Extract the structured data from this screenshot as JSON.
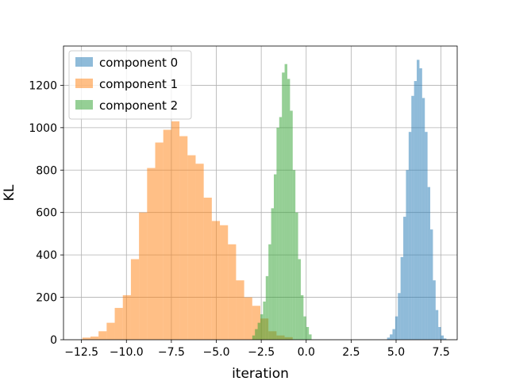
{
  "chart_data": {
    "type": "bar",
    "title": "",
    "xlabel": "iteration",
    "ylabel": "KL",
    "xlim": [
      -13.5,
      8.4
    ],
    "ylim": [
      0,
      1385
    ],
    "grid": true,
    "legend_position": "top-left",
    "xticks": [
      -12.5,
      -10.0,
      -7.5,
      -5.0,
      -2.5,
      0.0,
      2.5,
      5.0,
      7.5
    ],
    "xtick_labels": [
      "−12.5",
      "−10.0",
      "−7.5",
      "−5.0",
      "−2.5",
      "0.0",
      "2.5",
      "5.0",
      "7.5"
    ],
    "yticks": [
      0,
      200,
      400,
      600,
      800,
      1000,
      1200
    ],
    "ytick_labels": [
      "0",
      "200",
      "400",
      "600",
      "800",
      "1000",
      "1200"
    ],
    "series": [
      {
        "name": "component 0",
        "color": "#1f77b4",
        "bin_start": 4.5,
        "bin_width": 0.15,
        "counts": [
          10,
          25,
          50,
          110,
          220,
          390,
          580,
          800,
          980,
          1150,
          1220,
          1320,
          1280,
          1140,
          980,
          720,
          520,
          280,
          140,
          60,
          20,
          6
        ]
      },
      {
        "name": "component 1",
        "color": "#ff7f0e",
        "bin_start": -12.45,
        "bin_width": 0.45,
        "counts": [
          10,
          15,
          40,
          80,
          150,
          210,
          380,
          600,
          810,
          930,
          990,
          1030,
          960,
          870,
          830,
          670,
          560,
          540,
          450,
          280,
          200,
          160,
          100,
          40,
          20,
          12
        ]
      },
      {
        "name": "component 2",
        "color": "#2ca02c",
        "bin_start": -3.0,
        "bin_width": 0.15,
        "counts": [
          20,
          50,
          80,
          120,
          180,
          300,
          450,
          620,
          780,
          1000,
          1050,
          1260,
          1300,
          1230,
          1080,
          800,
          600,
          380,
          210,
          110,
          60,
          25
        ]
      }
    ]
  }
}
